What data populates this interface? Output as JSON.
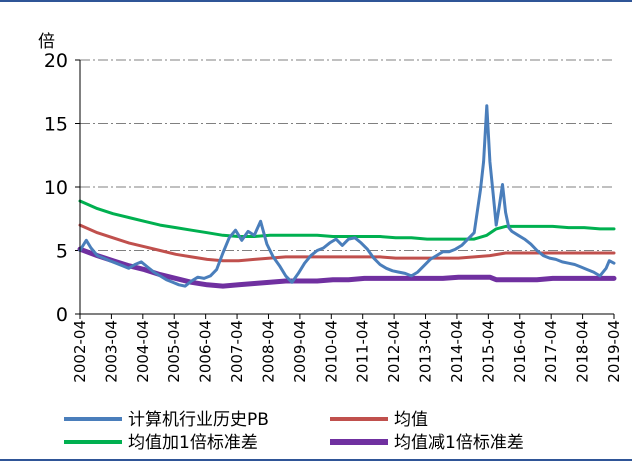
{
  "chart_data": {
    "type": "line",
    "y_unit_label": "倍",
    "ylim": [
      0,
      20
    ],
    "yticks": [
      "0",
      "5",
      "10",
      "15",
      "20"
    ],
    "x_range": [
      "2002-04",
      "2019-04"
    ],
    "xticks": [
      "2002-04",
      "2003-04",
      "2004-04",
      "2005-04",
      "2006-04",
      "2007-04",
      "2008-04",
      "2009-04",
      "2010-04",
      "2011-04",
      "2012-04",
      "2013-04",
      "2014-04",
      "2015-04",
      "2016-04",
      "2017-04",
      "2018-04",
      "2019-04"
    ],
    "grid": "horizontal dash-dot",
    "legend_position": "bottom",
    "series": [
      {
        "name": "计算机行业历史PB",
        "color": "#4a7ebb",
        "points": [
          [
            2002.25,
            5.0
          ],
          [
            2002.35,
            5.4
          ],
          [
            2002.45,
            5.8
          ],
          [
            2002.6,
            5.2
          ],
          [
            2002.8,
            4.6
          ],
          [
            2003.0,
            4.4
          ],
          [
            2003.2,
            4.2
          ],
          [
            2003.4,
            4.0
          ],
          [
            2003.6,
            3.8
          ],
          [
            2003.8,
            3.6
          ],
          [
            2004.0,
            3.9
          ],
          [
            2004.2,
            4.1
          ],
          [
            2004.4,
            3.7
          ],
          [
            2004.6,
            3.3
          ],
          [
            2004.8,
            3.0
          ],
          [
            2005.0,
            2.7
          ],
          [
            2005.2,
            2.5
          ],
          [
            2005.4,
            2.3
          ],
          [
            2005.6,
            2.2
          ],
          [
            2005.8,
            2.6
          ],
          [
            2006.0,
            2.9
          ],
          [
            2006.2,
            2.8
          ],
          [
            2006.4,
            3.0
          ],
          [
            2006.6,
            3.5
          ],
          [
            2006.8,
            4.8
          ],
          [
            2007.0,
            6.0
          ],
          [
            2007.2,
            6.6
          ],
          [
            2007.4,
            5.8
          ],
          [
            2007.6,
            6.5
          ],
          [
            2007.8,
            6.2
          ],
          [
            2008.0,
            7.3
          ],
          [
            2008.2,
            5.5
          ],
          [
            2008.4,
            4.5
          ],
          [
            2008.6,
            3.8
          ],
          [
            2008.8,
            3.0
          ],
          [
            2009.0,
            2.5
          ],
          [
            2009.2,
            3.2
          ],
          [
            2009.4,
            4.0
          ],
          [
            2009.6,
            4.6
          ],
          [
            2009.8,
            5.0
          ],
          [
            2010.0,
            5.2
          ],
          [
            2010.2,
            5.6
          ],
          [
            2010.4,
            5.9
          ],
          [
            2010.6,
            5.4
          ],
          [
            2010.8,
            5.9
          ],
          [
            2011.0,
            6.0
          ],
          [
            2011.2,
            5.6
          ],
          [
            2011.4,
            5.1
          ],
          [
            2011.6,
            4.4
          ],
          [
            2011.8,
            3.9
          ],
          [
            2012.0,
            3.6
          ],
          [
            2012.2,
            3.4
          ],
          [
            2012.4,
            3.3
          ],
          [
            2012.6,
            3.2
          ],
          [
            2012.8,
            3.0
          ],
          [
            2013.0,
            3.3
          ],
          [
            2013.2,
            3.8
          ],
          [
            2013.4,
            4.3
          ],
          [
            2013.6,
            4.6
          ],
          [
            2013.8,
            4.9
          ],
          [
            2014.0,
            4.9
          ],
          [
            2014.2,
            5.1
          ],
          [
            2014.4,
            5.4
          ],
          [
            2014.6,
            5.9
          ],
          [
            2014.8,
            6.4
          ],
          [
            2015.0,
            9.8
          ],
          [
            2015.1,
            12.0
          ],
          [
            2015.2,
            16.4
          ],
          [
            2015.3,
            12.0
          ],
          [
            2015.4,
            9.5
          ],
          [
            2015.5,
            7.0
          ],
          [
            2015.6,
            8.5
          ],
          [
            2015.7,
            10.2
          ],
          [
            2015.8,
            8.0
          ],
          [
            2015.9,
            6.8
          ],
          [
            2016.0,
            6.5
          ],
          [
            2016.2,
            6.2
          ],
          [
            2016.4,
            5.9
          ],
          [
            2016.6,
            5.5
          ],
          [
            2016.8,
            5.0
          ],
          [
            2017.0,
            4.6
          ],
          [
            2017.2,
            4.4
          ],
          [
            2017.4,
            4.3
          ],
          [
            2017.6,
            4.1
          ],
          [
            2017.8,
            4.0
          ],
          [
            2018.0,
            3.9
          ],
          [
            2018.2,
            3.7
          ],
          [
            2018.4,
            3.5
          ],
          [
            2018.6,
            3.3
          ],
          [
            2018.8,
            3.0
          ],
          [
            2019.0,
            3.6
          ],
          [
            2019.1,
            4.2
          ],
          [
            2019.25,
            4.0
          ]
        ]
      },
      {
        "name": "均值",
        "color": "#c0504d",
        "points": [
          [
            2002.25,
            7.0
          ],
          [
            2002.8,
            6.4
          ],
          [
            2003.3,
            6.0
          ],
          [
            2003.8,
            5.6
          ],
          [
            2004.3,
            5.3
          ],
          [
            2004.8,
            5.0
          ],
          [
            2005.3,
            4.7
          ],
          [
            2005.8,
            4.5
          ],
          [
            2006.3,
            4.3
          ],
          [
            2006.8,
            4.2
          ],
          [
            2007.3,
            4.2
          ],
          [
            2007.8,
            4.3
          ],
          [
            2008.3,
            4.4
          ],
          [
            2008.8,
            4.5
          ],
          [
            2009.3,
            4.5
          ],
          [
            2009.8,
            4.5
          ],
          [
            2010.3,
            4.5
          ],
          [
            2010.8,
            4.5
          ],
          [
            2011.3,
            4.5
          ],
          [
            2011.8,
            4.5
          ],
          [
            2012.3,
            4.4
          ],
          [
            2012.8,
            4.4
          ],
          [
            2013.3,
            4.4
          ],
          [
            2013.8,
            4.4
          ],
          [
            2014.3,
            4.4
          ],
          [
            2014.8,
            4.5
          ],
          [
            2015.3,
            4.6
          ],
          [
            2015.8,
            4.8
          ],
          [
            2016.3,
            4.8
          ],
          [
            2016.8,
            4.8
          ],
          [
            2017.3,
            4.8
          ],
          [
            2017.8,
            4.8
          ],
          [
            2018.3,
            4.8
          ],
          [
            2018.8,
            4.8
          ],
          [
            2019.25,
            4.8
          ]
        ]
      },
      {
        "name": "均值加1倍标准差",
        "color": "#00b050",
        "points": [
          [
            2002.25,
            8.9
          ],
          [
            2002.8,
            8.3
          ],
          [
            2003.3,
            7.9
          ],
          [
            2003.8,
            7.6
          ],
          [
            2004.3,
            7.3
          ],
          [
            2004.8,
            7.0
          ],
          [
            2005.3,
            6.8
          ],
          [
            2005.8,
            6.6
          ],
          [
            2006.3,
            6.4
          ],
          [
            2006.8,
            6.2
          ],
          [
            2007.3,
            6.1
          ],
          [
            2007.8,
            6.1
          ],
          [
            2008.3,
            6.2
          ],
          [
            2008.8,
            6.2
          ],
          [
            2009.3,
            6.2
          ],
          [
            2009.8,
            6.2
          ],
          [
            2010.3,
            6.1
          ],
          [
            2010.8,
            6.1
          ],
          [
            2011.3,
            6.1
          ],
          [
            2011.8,
            6.1
          ],
          [
            2012.3,
            6.0
          ],
          [
            2012.8,
            6.0
          ],
          [
            2013.3,
            5.9
          ],
          [
            2013.8,
            5.9
          ],
          [
            2014.3,
            5.9
          ],
          [
            2014.8,
            5.9
          ],
          [
            2015.2,
            6.2
          ],
          [
            2015.5,
            6.7
          ],
          [
            2015.8,
            6.9
          ],
          [
            2016.3,
            6.9
          ],
          [
            2016.8,
            6.9
          ],
          [
            2017.3,
            6.9
          ],
          [
            2017.8,
            6.8
          ],
          [
            2018.3,
            6.8
          ],
          [
            2018.8,
            6.7
          ],
          [
            2019.25,
            6.7
          ]
        ]
      },
      {
        "name": "均值减1倍标准差",
        "color": "#7030a0",
        "points": [
          [
            2002.25,
            5.1
          ],
          [
            2002.8,
            4.6
          ],
          [
            2003.3,
            4.2
          ],
          [
            2003.8,
            3.8
          ],
          [
            2004.3,
            3.5
          ],
          [
            2004.8,
            3.1
          ],
          [
            2005.3,
            2.8
          ],
          [
            2005.8,
            2.5
          ],
          [
            2006.3,
            2.3
          ],
          [
            2006.8,
            2.2
          ],
          [
            2007.3,
            2.3
          ],
          [
            2007.8,
            2.4
          ],
          [
            2008.3,
            2.5
          ],
          [
            2008.8,
            2.6
          ],
          [
            2009.3,
            2.6
          ],
          [
            2009.8,
            2.6
          ],
          [
            2010.3,
            2.7
          ],
          [
            2010.8,
            2.7
          ],
          [
            2011.3,
            2.8
          ],
          [
            2011.8,
            2.8
          ],
          [
            2012.3,
            2.8
          ],
          [
            2012.8,
            2.8
          ],
          [
            2013.3,
            2.8
          ],
          [
            2013.8,
            2.8
          ],
          [
            2014.3,
            2.9
          ],
          [
            2014.8,
            2.9
          ],
          [
            2015.3,
            2.9
          ],
          [
            2015.5,
            2.7
          ],
          [
            2015.8,
            2.7
          ],
          [
            2016.3,
            2.7
          ],
          [
            2016.8,
            2.7
          ],
          [
            2017.3,
            2.8
          ],
          [
            2017.8,
            2.8
          ],
          [
            2018.3,
            2.8
          ],
          [
            2018.8,
            2.8
          ],
          [
            2019.25,
            2.8
          ]
        ]
      }
    ]
  }
}
